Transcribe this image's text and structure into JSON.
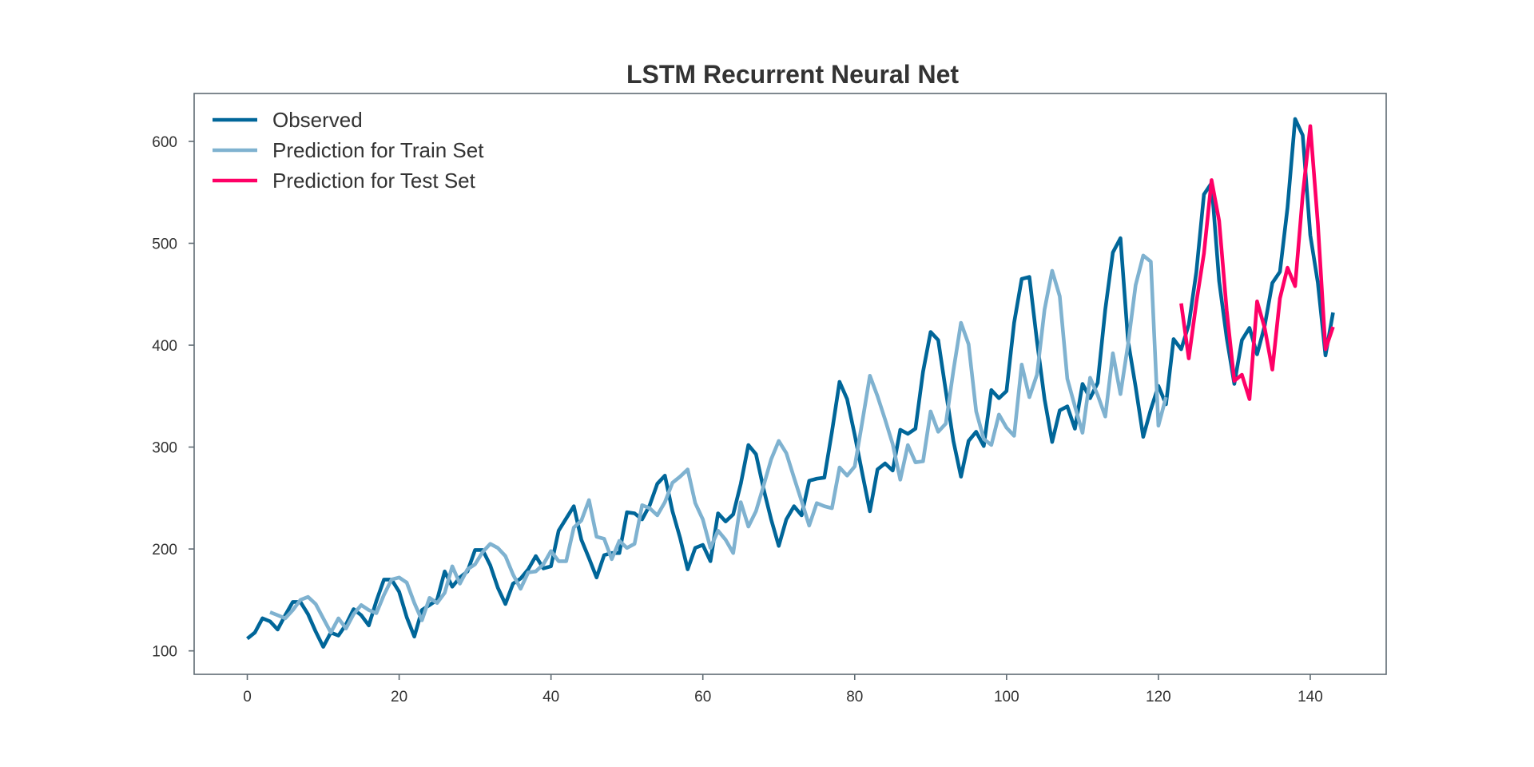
{
  "chart_data": {
    "type": "line",
    "title": "LSTM Recurrent Neural Net",
    "xlabel": "",
    "ylabel": "",
    "xlim": [
      -7,
      150
    ],
    "ylim": [
      77,
      647
    ],
    "xticks": [
      0,
      20,
      40,
      60,
      80,
      100,
      120,
      140
    ],
    "yticks": [
      100,
      200,
      300,
      400,
      500,
      600
    ],
    "grid": false,
    "legend": "top-left",
    "series": [
      {
        "name": "Observed",
        "color": "#006699",
        "x_start": 0,
        "values": [
          112,
          118,
          132,
          129,
          121,
          135,
          148,
          148,
          136,
          119,
          104,
          118,
          115,
          126,
          141,
          135,
          125,
          149,
          170,
          170,
          158,
          133,
          114,
          140,
          145,
          150,
          178,
          163,
          172,
          178,
          199,
          199,
          184,
          162,
          146,
          166,
          171,
          180,
          193,
          181,
          183,
          218,
          230,
          242,
          209,
          191,
          172,
          194,
          196,
          196,
          236,
          235,
          229,
          243,
          264,
          272,
          237,
          211,
          180,
          201,
          204,
          188,
          235,
          227,
          234,
          264,
          302,
          293,
          259,
          229,
          203,
          229,
          242,
          233,
          267,
          269,
          270,
          315,
          364,
          347,
          312,
          274,
          237,
          278,
          284,
          277,
          317,
          313,
          318,
          374,
          413,
          405,
          355,
          306,
          271,
          306,
          315,
          301,
          356,
          348,
          355,
          422,
          465,
          467,
          404,
          347,
          305,
          336,
          340,
          318,
          362,
          348,
          363,
          435,
          491,
          505,
          404,
          359,
          310,
          337,
          360,
          342,
          406,
          396,
          420,
          472,
          548,
          559,
          463,
          407,
          362,
          405,
          417,
          391,
          419,
          461,
          472,
          535,
          622,
          606,
          508,
          461,
          390,
          432
        ]
      },
      {
        "name": "Prediction for Train Set",
        "color": "#7fb2d0",
        "x_start": 3,
        "values": [
          138,
          135,
          132,
          140,
          150,
          153,
          146,
          132,
          118,
          132,
          122,
          136,
          145,
          140,
          137,
          155,
          170,
          172,
          167,
          147,
          130,
          152,
          147,
          157,
          183,
          166,
          180,
          185,
          197,
          205,
          201,
          193,
          175,
          161,
          177,
          178,
          185,
          198,
          188,
          188,
          221,
          228,
          248,
          212,
          210,
          190,
          208,
          201,
          205,
          243,
          240,
          233,
          246,
          265,
          271,
          278,
          245,
          229,
          201,
          218,
          209,
          196,
          246,
          222,
          237,
          262,
          288,
          306,
          294,
          270,
          247,
          223,
          245,
          242,
          240,
          280,
          272,
          281,
          325,
          370,
          350,
          327,
          303,
          268,
          302,
          285,
          286,
          335,
          315,
          323,
          375,
          422,
          401,
          335,
          308,
          302,
          332,
          319,
          311,
          381,
          349,
          371,
          435,
          473,
          448,
          367,
          340,
          314,
          368,
          351,
          330,
          392,
          352,
          401,
          459,
          488,
          482,
          321,
          349
        ]
      },
      {
        "name": "Prediction for Test Set",
        "color": "#ff0066",
        "x_start": 123,
        "values": [
          441,
          387,
          442,
          490,
          562,
          522,
          434,
          365,
          371,
          347,
          443,
          417,
          376,
          446,
          476,
          458,
          547,
          615,
          519,
          396,
          418
        ]
      }
    ]
  }
}
